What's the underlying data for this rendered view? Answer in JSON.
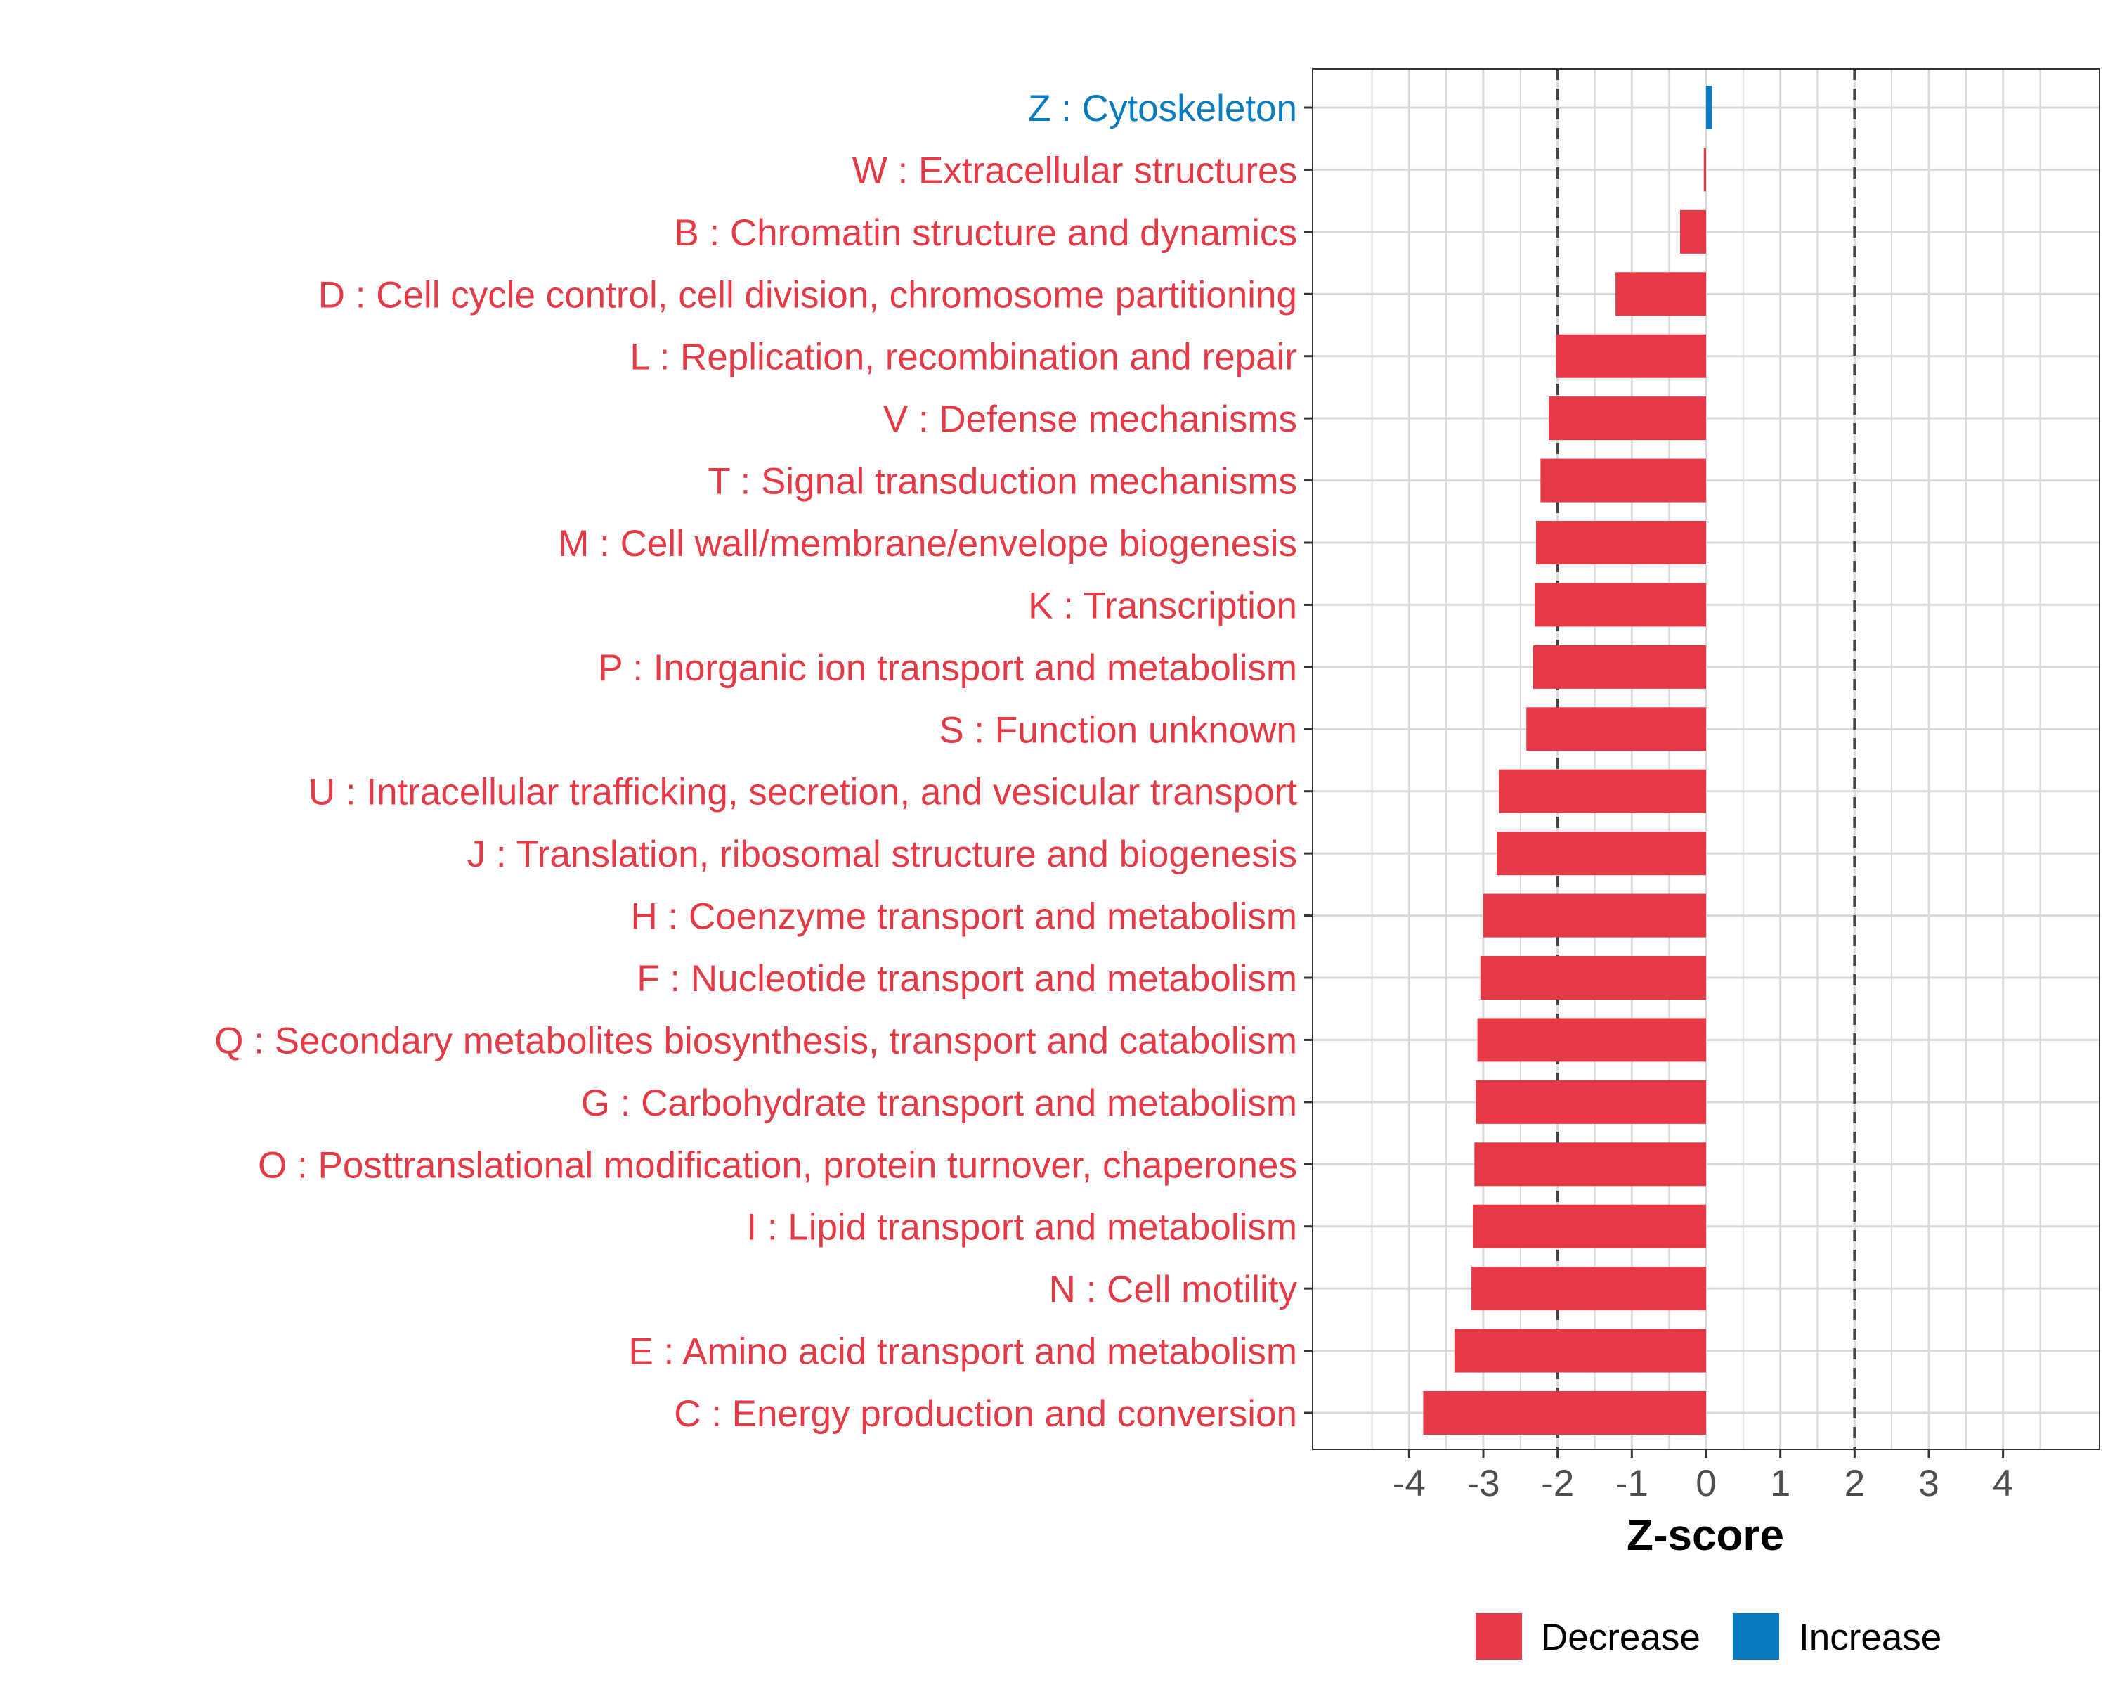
{
  "colors": {
    "decrease": "#E63946",
    "increase": "#0A7BBE",
    "grid": "#D9D9D9",
    "refline": "#444444",
    "tick_text": "#4D4D4D",
    "axis_title": "#000000"
  },
  "chart_data": {
    "type": "bar",
    "orientation": "horizontal",
    "xlabel": "Z-score",
    "xlim": [
      -5.3,
      5.3
    ],
    "xticks": [
      -4,
      -3,
      -2,
      -1,
      0,
      1,
      2,
      3,
      4
    ],
    "xtick_labels": [
      "-4",
      "-3",
      "-2",
      "-1",
      "0",
      "1",
      "2",
      "3",
      "4"
    ],
    "reference_lines": [
      -2,
      2
    ],
    "grid": true,
    "legend_position": "bottom",
    "legend": [
      {
        "label": "Decrease",
        "color": "#E63946"
      },
      {
        "label": "Increase",
        "color": "#0A7BBE"
      }
    ],
    "categories": [
      {
        "label": "Z : Cytoskeleton",
        "value": 0.08,
        "direction": "Increase"
      },
      {
        "label": "W : Extracellular structures",
        "value": -0.03,
        "direction": "Decrease"
      },
      {
        "label": "B : Chromatin structure and dynamics",
        "value": -0.35,
        "direction": "Decrease"
      },
      {
        "label": "D : Cell cycle control, cell division, chromosome partitioning",
        "value": -1.22,
        "direction": "Decrease"
      },
      {
        "label": "L : Replication, recombination and repair",
        "value": -2.02,
        "direction": "Decrease"
      },
      {
        "label": "V : Defense mechanisms",
        "value": -2.12,
        "direction": "Decrease"
      },
      {
        "label": "T : Signal transduction mechanisms",
        "value": -2.23,
        "direction": "Decrease"
      },
      {
        "label": "M : Cell wall/membrane/envelope biogenesis",
        "value": -2.29,
        "direction": "Decrease"
      },
      {
        "label": "K : Transcription",
        "value": -2.31,
        "direction": "Decrease"
      },
      {
        "label": "P : Inorganic ion transport and metabolism",
        "value": -2.33,
        "direction": "Decrease"
      },
      {
        "label": "S : Function unknown",
        "value": -2.42,
        "direction": "Decrease"
      },
      {
        "label": "U : Intracellular trafficking, secretion, and vesicular transport",
        "value": -2.79,
        "direction": "Decrease"
      },
      {
        "label": "J : Translation, ribosomal structure and biogenesis",
        "value": -2.82,
        "direction": "Decrease"
      },
      {
        "label": "H : Coenzyme transport and metabolism",
        "value": -3.0,
        "direction": "Decrease"
      },
      {
        "label": "F : Nucleotide transport and metabolism",
        "value": -3.04,
        "direction": "Decrease"
      },
      {
        "label": "Q : Secondary metabolites biosynthesis, transport and catabolism",
        "value": -3.08,
        "direction": "Decrease"
      },
      {
        "label": "G : Carbohydrate transport and metabolism",
        "value": -3.1,
        "direction": "Decrease"
      },
      {
        "label": "O : Posttranslational modification, protein turnover, chaperones",
        "value": -3.12,
        "direction": "Decrease"
      },
      {
        "label": "I : Lipid transport and metabolism",
        "value": -3.14,
        "direction": "Decrease"
      },
      {
        "label": "N : Cell motility",
        "value": -3.16,
        "direction": "Decrease"
      },
      {
        "label": "E : Amino acid transport and metabolism",
        "value": -3.39,
        "direction": "Decrease"
      },
      {
        "label": "C : Energy production and conversion",
        "value": -3.81,
        "direction": "Decrease"
      }
    ]
  }
}
